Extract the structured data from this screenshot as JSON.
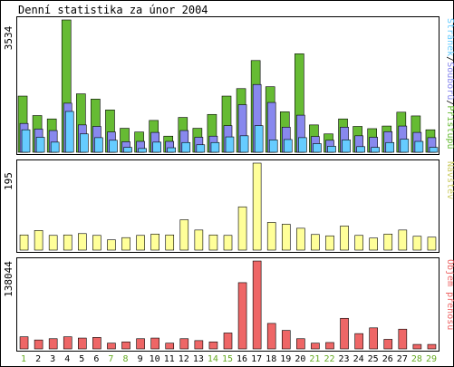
{
  "chart_data": [
    {
      "type": "bar",
      "title": "Denní statistika za únor 2004",
      "ylabel": "3534",
      "legend": [
        "Přístupů",
        "Souborů",
        "Stránek"
      ],
      "legend_placement": "right (vertical)",
      "ylim": [
        0,
        3534
      ],
      "categories": [
        "1",
        "2",
        "3",
        "4",
        "5",
        "6",
        "7",
        "8",
        "9",
        "10",
        "11",
        "12",
        "13",
        "14",
        "15",
        "16",
        "17",
        "18",
        "19",
        "20",
        "21",
        "22",
        "23",
        "24",
        "25",
        "26",
        "27",
        "28",
        "29"
      ],
      "weekend_days": [
        "1",
        "7",
        "8",
        "14",
        "15",
        "21",
        "22",
        "28",
        "29"
      ],
      "series": [
        {
          "name": "Přístupů",
          "color": "#66bb33",
          "values": [
            1500,
            980,
            890,
            3534,
            1560,
            1420,
            1130,
            640,
            540,
            850,
            430,
            930,
            640,
            1010,
            1500,
            1700,
            2450,
            1750,
            1080,
            2630,
            730,
            490,
            890,
            690,
            630,
            700,
            1070,
            970,
            600
          ]
        },
        {
          "name": "Souborů",
          "color": "#8888ee",
          "values": [
            770,
            620,
            580,
            1310,
            730,
            690,
            540,
            280,
            290,
            530,
            290,
            580,
            400,
            430,
            710,
            1270,
            1810,
            1330,
            670,
            990,
            420,
            320,
            670,
            440,
            400,
            550,
            700,
            530,
            390
          ]
        },
        {
          "name": "Stránek",
          "color": "#66ccff",
          "values": [
            600,
            400,
            270,
            1090,
            490,
            390,
            320,
            130,
            100,
            270,
            120,
            260,
            200,
            260,
            410,
            440,
            710,
            330,
            340,
            390,
            230,
            160,
            330,
            150,
            130,
            260,
            350,
            290,
            130
          ]
        }
      ]
    },
    {
      "type": "bar",
      "ylabel": "195",
      "legend": [
        "Návštěv"
      ],
      "ylim": [
        0,
        195
      ],
      "categories": [
        "1",
        "2",
        "3",
        "4",
        "5",
        "6",
        "7",
        "8",
        "9",
        "10",
        "11",
        "12",
        "13",
        "14",
        "15",
        "16",
        "17",
        "18",
        "19",
        "20",
        "21",
        "22",
        "23",
        "24",
        "25",
        "26",
        "27",
        "28",
        "29"
      ],
      "series": [
        {
          "name": "Návštěv",
          "color": "#ffff99",
          "values": [
            34,
            44,
            33,
            34,
            37,
            33,
            23,
            28,
            33,
            36,
            34,
            68,
            45,
            34,
            33,
            97,
            195,
            62,
            58,
            49,
            35,
            32,
            54,
            33,
            27,
            36,
            45,
            31,
            29
          ]
        }
      ]
    },
    {
      "type": "bar",
      "ylabel": "138044",
      "legend": [
        "Objem přenosu"
      ],
      "ylim": [
        0,
        138044
      ],
      "categories": [
        "1",
        "2",
        "3",
        "4",
        "5",
        "6",
        "7",
        "8",
        "9",
        "10",
        "11",
        "12",
        "13",
        "14",
        "15",
        "16",
        "17",
        "18",
        "19",
        "20",
        "21",
        "22",
        "23",
        "24",
        "25",
        "26",
        "27",
        "28",
        "29"
      ],
      "series": [
        {
          "name": "Objem přenosu",
          "color": "#ee6666",
          "values": [
            19000,
            14000,
            16000,
            19000,
            17000,
            18000,
            9000,
            11000,
            16000,
            17000,
            9000,
            16000,
            13000,
            11000,
            25000,
            104000,
            138000,
            40000,
            29000,
            16000,
            9000,
            10000,
            48000,
            24000,
            33000,
            15000,
            31000,
            7000,
            7000
          ]
        }
      ]
    }
  ],
  "colors": {
    "frame": "#000000",
    "weekday_label": "#000000",
    "weekend_label": "#66aa22",
    "visits_legend": "#cccc66",
    "volume_legend": "#ee6666"
  }
}
